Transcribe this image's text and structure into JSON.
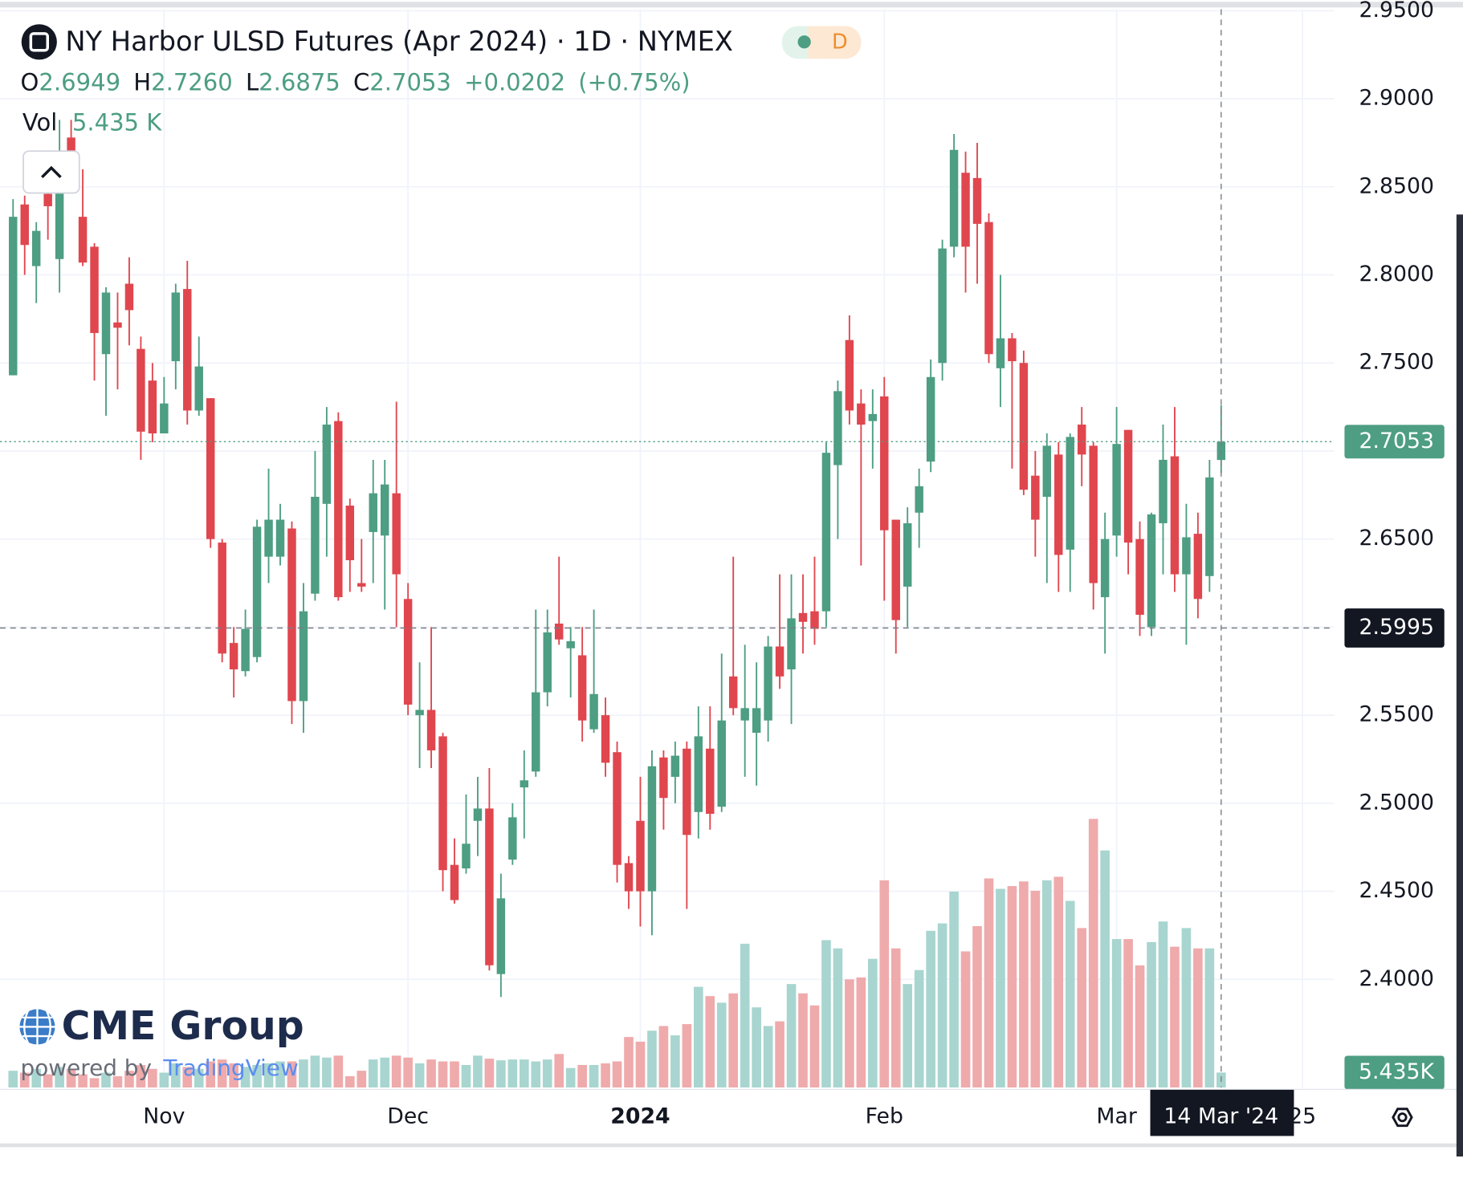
{
  "header": {
    "title": "NY Harbor ULSD Futures (Apr 2024) · 1D · NYMEX",
    "interval_badge": "D"
  },
  "legend": {
    "o": "O",
    "o_value": "2.6949",
    "h": "H",
    "h_value": "2.7260",
    "l": "L",
    "l_value": "2.6875",
    "c": "C",
    "c_value": "2.7053",
    "change": "+0.0202",
    "change_pct": "(+0.75%)",
    "vol": "Vol",
    "vol_value": "5.435 K"
  },
  "chart_data": {
    "type": "candlestick",
    "categories": [
      null,
      null,
      null,
      null,
      null,
      null,
      null,
      null,
      null,
      null,
      null,
      null,
      null,
      "Nov",
      null,
      null,
      null,
      null,
      null,
      null,
      null,
      null,
      null,
      null,
      null,
      null,
      null,
      null,
      null,
      null,
      null,
      null,
      null,
      null,
      "Dec",
      null,
      null,
      null,
      null,
      null,
      null,
      null,
      null,
      null,
      null,
      null,
      null,
      null,
      null,
      null,
      null,
      null,
      null,
      null,
      "2024",
      null,
      null,
      null,
      null,
      null,
      null,
      null,
      null,
      null,
      null,
      null,
      null,
      null,
      null,
      null,
      null,
      null,
      null,
      null,
      null,
      "Feb",
      null,
      null,
      null,
      null,
      null,
      null,
      null,
      null,
      null,
      null,
      null,
      null,
      null,
      null,
      null,
      null,
      null,
      null,
      null,
      "Mar",
      null,
      null,
      null,
      null,
      null,
      null,
      null,
      null,
      null,
      null,
      null,
      null,
      null,
      null,
      null,
      "25"
    ],
    "open": [
      2.743,
      2.84,
      2.805,
      2.846,
      2.809,
      2.878,
      2.833,
      2.816,
      2.755,
      2.773,
      2.795,
      2.758,
      2.74,
      2.71,
      2.751,
      2.792,
      2.723,
      2.73,
      2.648,
      2.591,
      2.575,
      2.583,
      2.64,
      2.64,
      2.656,
      2.558,
      2.619,
      2.67,
      2.717,
      2.669,
      2.625,
      2.654,
      2.652,
      2.676,
      2.616,
      2.55,
      2.553,
      2.538,
      2.465,
      2.463,
      2.49,
      2.497,
      2.403,
      2.468,
      2.509,
      2.518,
      2.563,
      2.602,
      2.588,
      2.584,
      2.542,
      2.55,
      2.529,
      2.466,
      2.49,
      2.45,
      2.526,
      2.515,
      2.531,
      2.495,
      2.531,
      2.498,
      2.572,
      2.547,
      2.54,
      2.547,
      2.589,
      2.576,
      2.608,
      2.609,
      2.609,
      2.692,
      2.763,
      2.727,
      2.717,
      2.731,
      2.661,
      2.623,
      2.665,
      2.694,
      2.75,
      2.816,
      2.858,
      2.855,
      2.83,
      2.747,
      2.764,
      2.75,
      2.686,
      2.674,
      2.698,
      2.644,
      2.715,
      2.703,
      2.617,
      2.652,
      2.712,
      2.65,
      2.6,
      2.659,
      2.697,
      2.63,
      2.653,
      2.629,
      2.6949,
      null,
      null,
      null,
      null,
      null,
      null,
      null
    ],
    "high": [
      2.843,
      2.845,
      2.83,
      2.86,
      2.888,
      2.888,
      2.86,
      2.818,
      2.793,
      2.79,
      2.81,
      2.765,
      2.75,
      2.742,
      2.795,
      2.808,
      2.765,
      2.73,
      2.65,
      2.6,
      2.61,
      2.661,
      2.69,
      2.67,
      2.66,
      2.625,
      2.7,
      2.725,
      2.722,
      2.673,
      2.65,
      2.695,
      2.695,
      2.728,
      2.625,
      2.58,
      2.6,
      2.54,
      2.48,
      2.505,
      2.515,
      2.52,
      2.46,
      2.5,
      2.53,
      2.61,
      2.61,
      2.64,
      2.6,
      2.6,
      2.61,
      2.56,
      2.535,
      2.47,
      2.515,
      2.53,
      2.53,
      2.535,
      2.535,
      2.555,
      2.555,
      2.585,
      2.64,
      2.59,
      2.58,
      2.595,
      2.63,
      2.63,
      2.63,
      2.64,
      2.705,
      2.74,
      2.777,
      2.735,
      2.735,
      2.742,
      2.661,
      2.668,
      2.69,
      2.752,
      2.82,
      2.88,
      2.87,
      2.875,
      2.835,
      2.8,
      2.767,
      2.757,
      2.7,
      2.71,
      2.705,
      2.71,
      2.725,
      2.705,
      2.665,
      2.725,
      2.712,
      2.66,
      2.665,
      2.715,
      2.725,
      2.67,
      2.665,
      2.695,
      2.726,
      null,
      null,
      null,
      null,
      null,
      null,
      null
    ],
    "low": [
      2.743,
      2.8,
      2.784,
      2.82,
      2.79,
      2.85,
      2.805,
      2.74,
      2.72,
      2.735,
      2.76,
      2.695,
      2.705,
      2.71,
      2.735,
      2.715,
      2.72,
      2.645,
      2.58,
      2.56,
      2.572,
      2.58,
      2.625,
      2.635,
      2.545,
      2.54,
      2.615,
      2.64,
      2.615,
      2.62,
      2.62,
      2.625,
      2.61,
      2.6,
      2.55,
      2.52,
      2.52,
      2.45,
      2.443,
      2.46,
      2.47,
      2.405,
      2.39,
      2.465,
      2.48,
      2.515,
      2.555,
      2.59,
      2.56,
      2.535,
      2.54,
      2.515,
      2.455,
      2.44,
      2.43,
      2.425,
      2.485,
      2.5,
      2.44,
      2.48,
      2.485,
      2.495,
      2.55,
      2.515,
      2.51,
      2.535,
      2.565,
      2.545,
      2.585,
      2.59,
      2.6,
      2.65,
      2.715,
      2.635,
      2.69,
      2.615,
      2.585,
      2.6,
      2.645,
      2.688,
      2.74,
      2.81,
      2.79,
      2.795,
      2.75,
      2.725,
      2.69,
      2.675,
      2.64,
      2.625,
      2.62,
      2.62,
      2.68,
      2.61,
      2.585,
      2.64,
      2.63,
      2.595,
      2.595,
      2.63,
      2.62,
      2.59,
      2.605,
      2.62,
      2.6875,
      null,
      null,
      null,
      null,
      null,
      null,
      null
    ],
    "close": [
      2.833,
      2.817,
      2.825,
      2.839,
      2.861,
      2.862,
      2.807,
      2.767,
      2.79,
      2.77,
      2.78,
      2.711,
      2.71,
      2.727,
      2.79,
      2.723,
      2.748,
      2.65,
      2.585,
      2.576,
      2.599,
      2.657,
      2.661,
      2.661,
      2.558,
      2.609,
      2.674,
      2.715,
      2.617,
      2.638,
      2.623,
      2.676,
      2.681,
      2.63,
      2.556,
      2.553,
      2.53,
      2.462,
      2.445,
      2.477,
      2.497,
      2.408,
      2.446,
      2.492,
      2.513,
      2.563,
      2.597,
      2.593,
      2.592,
      2.547,
      2.562,
      2.523,
      2.465,
      2.45,
      2.45,
      2.521,
      2.503,
      2.527,
      2.482,
      2.538,
      2.494,
      2.547,
      2.554,
      2.554,
      2.554,
      2.589,
      2.572,
      2.605,
      2.603,
      2.599,
      2.699,
      2.734,
      2.723,
      2.715,
      2.721,
      2.655,
      2.604,
      2.659,
      2.68,
      2.742,
      2.815,
      2.871,
      2.816,
      2.829,
      2.755,
      2.764,
      2.751,
      2.678,
      2.661,
      2.703,
      2.641,
      2.708,
      2.698,
      2.625,
      2.65,
      2.704,
      2.648,
      2.607,
      2.664,
      2.695,
      2.63,
      2.651,
      2.616,
      2.685,
      2.7053,
      null,
      null,
      null,
      null,
      null,
      null,
      null
    ],
    "volume": [
      6.1,
      5.4,
      6.8,
      4.8,
      7.5,
      6.8,
      4.8,
      3.4,
      5.4,
      4.1,
      6.1,
      8.2,
      6.8,
      5.4,
      8.8,
      7.5,
      6.8,
      9.5,
      10.2,
      8.8,
      7.5,
      8.2,
      8.8,
      9.5,
      9.5,
      10.2,
      11.6,
      10.9,
      11.6,
      4.1,
      6.1,
      10.2,
      10.9,
      11.6,
      10.9,
      8.8,
      10.2,
      9.5,
      9.5,
      8.2,
      11.6,
      10.5,
      9.9,
      10.2,
      10.2,
      9.5,
      10.2,
      12.2,
      7.1,
      8.2,
      8.2,
      8.8,
      9.5,
      18.4,
      16.7,
      20.7,
      22.4,
      19.0,
      23.1,
      36.7,
      33.3,
      30.9,
      34.3,
      52.4,
      29.2,
      22.4,
      24.1,
      37.7,
      34.3,
      29.9,
      53.7,
      50.7,
      39.4,
      40.1,
      46.9,
      75.5,
      50.7,
      37.7,
      42.8,
      57.1,
      59.8,
      71.4,
      49.6,
      58.8,
      76.2,
      72.4,
      73.4,
      75.1,
      71.7,
      75.5,
      76.8,
      68.0,
      58.1,
      97.9,
      86.4,
      54.1,
      54.1,
      44.5,
      53.0,
      60.5,
      51.3,
      58.1,
      50.7,
      50.7,
      5.435,
      null,
      null,
      null,
      null,
      null,
      null,
      null
    ],
    "up_color": "#4d9e82",
    "down_color": "#e0464e",
    "volume_up_color": "#a8d5cf",
    "volume_down_color": "#efaaab",
    "ylim": [
      2.3386,
      2.9508
    ],
    "yticks": [
      {
        "value": 2.95,
        "label": "2.9500"
      },
      {
        "value": 2.9,
        "label": "2.9000"
      },
      {
        "value": 2.85,
        "label": "2.8500"
      },
      {
        "value": 2.8,
        "label": "2.8000"
      },
      {
        "value": 2.75,
        "label": "2.7500"
      },
      {
        "value": 2.7,
        "label": "2.7000"
      },
      {
        "value": 2.65,
        "label": "2.6500"
      },
      {
        "value": 2.6,
        "label": "2.6000"
      },
      {
        "value": 2.55,
        "label": "2.5500"
      },
      {
        "value": 2.5,
        "label": "2.5000"
      },
      {
        "value": 2.45,
        "label": "2.4500"
      },
      {
        "value": 2.4,
        "label": "2.4000"
      }
    ],
    "grid": true,
    "crosshair": {
      "price": 2.5995,
      "date": "14 Mar '24"
    },
    "volume_badge": "5.435K"
  },
  "branding": {
    "logo": "CME Group",
    "powered_by": "powered by",
    "tradingview": "TradingView"
  }
}
